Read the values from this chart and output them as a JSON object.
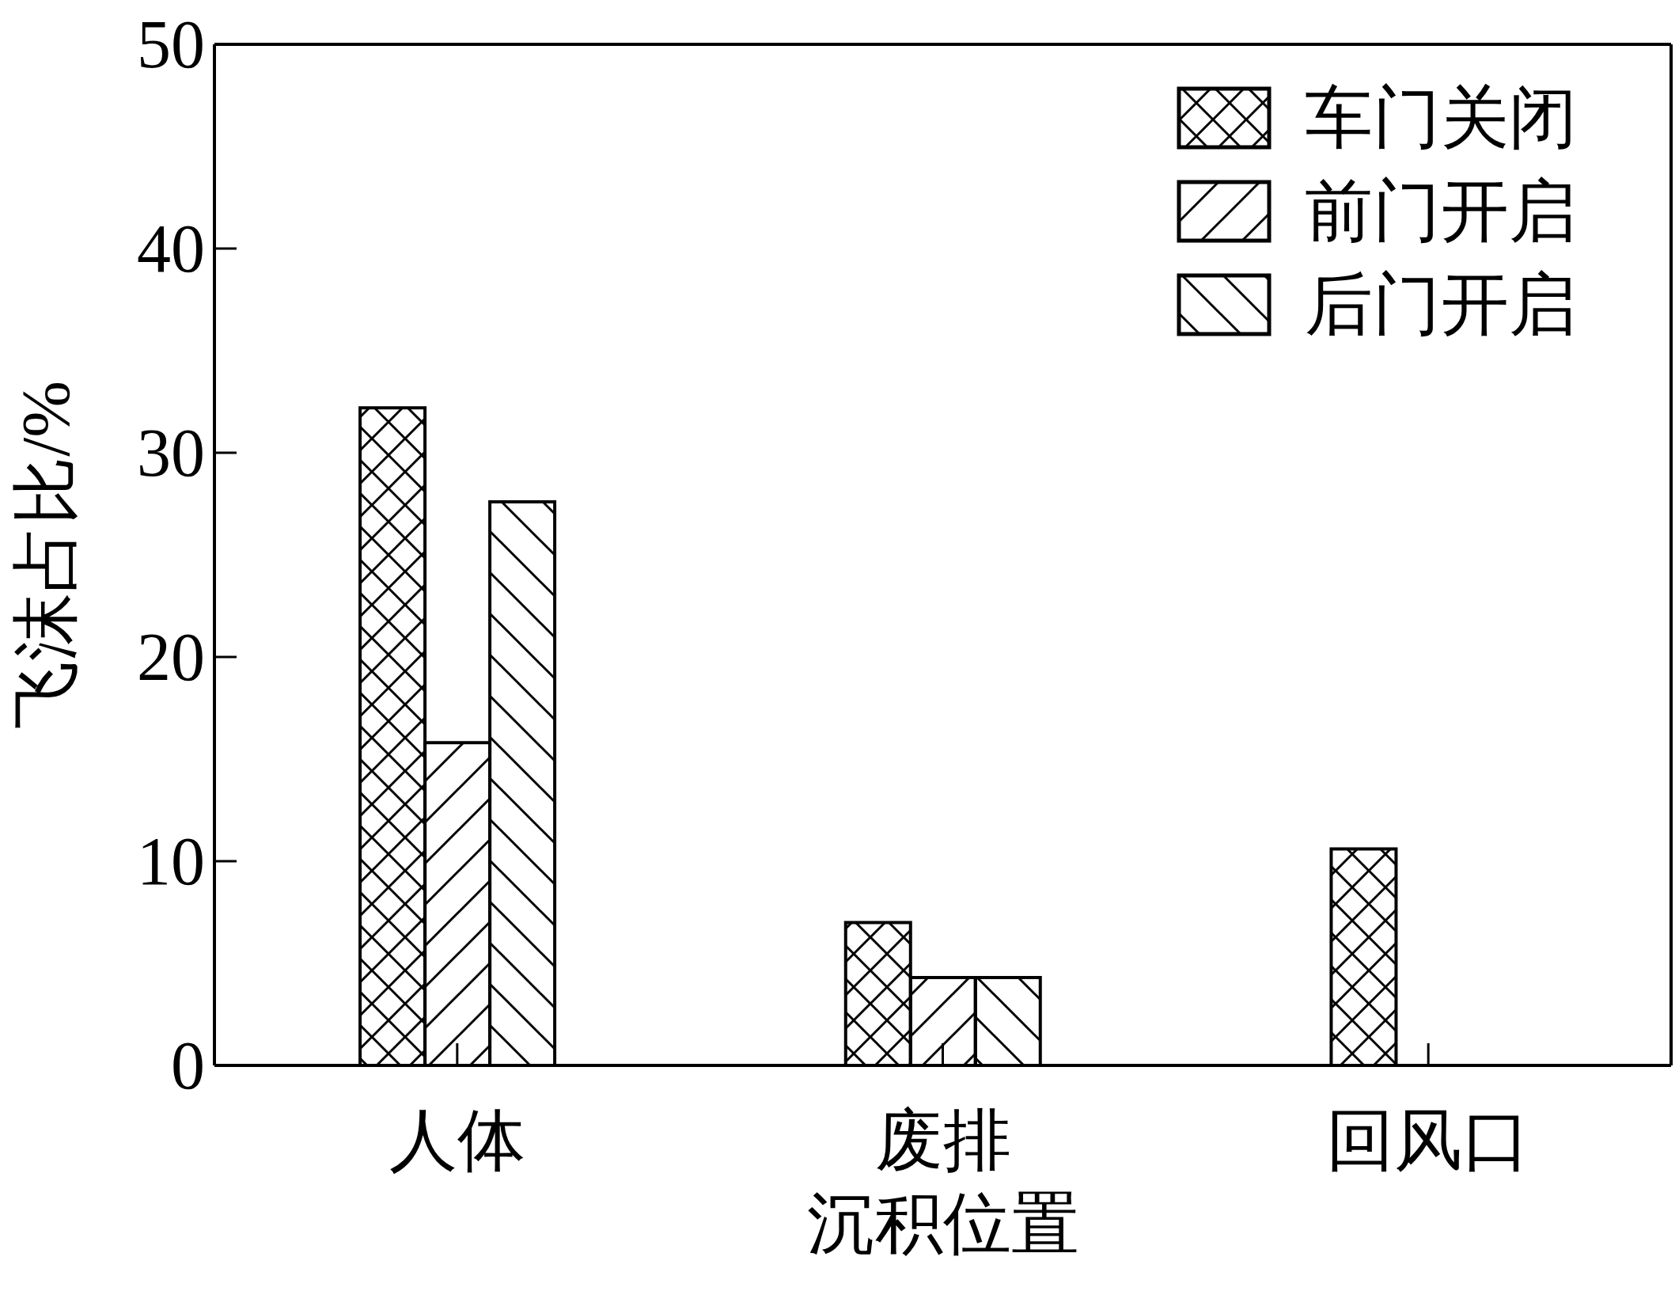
{
  "chart_data": {
    "type": "bar",
    "xlabel": "沉积位置",
    "ylabel": "飞沫占比/%",
    "categories": [
      "人体",
      "废排",
      "回风口"
    ],
    "series": [
      {
        "name": "车门关闭",
        "color": "#000000",
        "values": [
          32.2,
          7.0,
          10.6
        ]
      },
      {
        "name": "前门开启",
        "color": "#000000",
        "values": [
          15.8,
          4.3,
          null
        ]
      },
      {
        "name": "后门开启",
        "color": "#000000",
        "values": [
          27.6,
          4.3,
          null
        ]
      }
    ],
    "ylim": [
      0,
      50
    ],
    "yticks": [
      0,
      10,
      20,
      30,
      40,
      50
    ],
    "grid": false,
    "legend": "top right"
  }
}
